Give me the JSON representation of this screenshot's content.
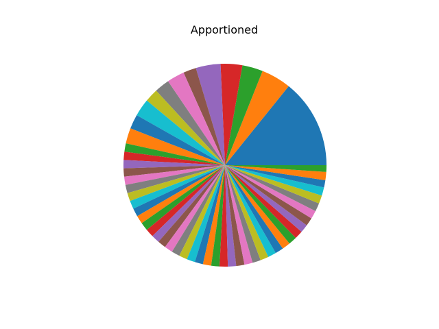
{
  "chart_data": {
    "type": "pie",
    "title": "Apportioned",
    "start_angle_deg": 0,
    "direction": "counterclockwise",
    "colors": [
      "#1f77b4",
      "#ff7f0e",
      "#2ca02c",
      "#d62728",
      "#9467bd",
      "#8c564b",
      "#e377c2",
      "#7f7f7f",
      "#bcbd22",
      "#17becf"
    ],
    "values": [
      17.3,
      5.8,
      4.0,
      4.2,
      4.8,
      2.5,
      3.4,
      2.9,
      2.6,
      3.4,
      2.8,
      3.0,
      1.6,
      1.6,
      1.6,
      1.6,
      1.6,
      1.6,
      1.6,
      1.6,
      1.6,
      1.6,
      1.6,
      1.6,
      1.6,
      1.6,
      1.6,
      1.6,
      1.6,
      1.6,
      1.6,
      1.6,
      1.6,
      1.6,
      1.6,
      1.6,
      1.6,
      1.6,
      1.6,
      1.6,
      1.6,
      1.6,
      1.6,
      1.6,
      1.6,
      1.6,
      1.6,
      1.6,
      1.6,
      1.6,
      1.4,
      1.6,
      1.3
    ]
  }
}
